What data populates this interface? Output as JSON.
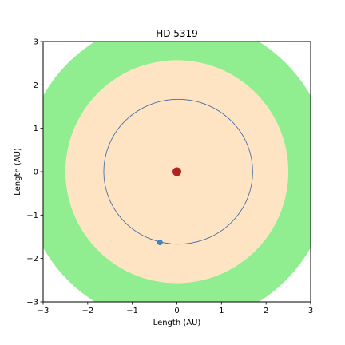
{
  "chart_data": {
    "type": "scatter",
    "title": "HD 5319",
    "xlabel": "Length (AU)",
    "ylabel": "Length (AU)",
    "xlim": [
      -3,
      3
    ],
    "ylim": [
      -3,
      3
    ],
    "xticks": [
      -3,
      -2,
      -1,
      0,
      1,
      2,
      3
    ],
    "yticks": [
      -3,
      -2,
      -1,
      0,
      1,
      2,
      3
    ],
    "xtick_labels": [
      "−3",
      "−2",
      "−1",
      "0",
      "1",
      "2",
      "3"
    ],
    "ytick_labels": [
      "−3",
      "−2",
      "−1",
      "0",
      "1",
      "2",
      "3"
    ],
    "grid": false,
    "zones": [
      {
        "role": "outer",
        "radius_au": 3.45,
        "color": "#90ee90"
      },
      {
        "role": "inner",
        "radius_au": 2.5,
        "color": "#ffe4c4"
      }
    ],
    "star": {
      "x": 0,
      "y": 0,
      "color": "#b22222"
    },
    "orbit": {
      "a_au": 1.67,
      "e": 0.02,
      "center_x": 0.03,
      "center_y": 0,
      "color": "#4a6fa5"
    },
    "planet": {
      "x": -0.38,
      "y": -1.63,
      "color": "#4682b4"
    }
  }
}
